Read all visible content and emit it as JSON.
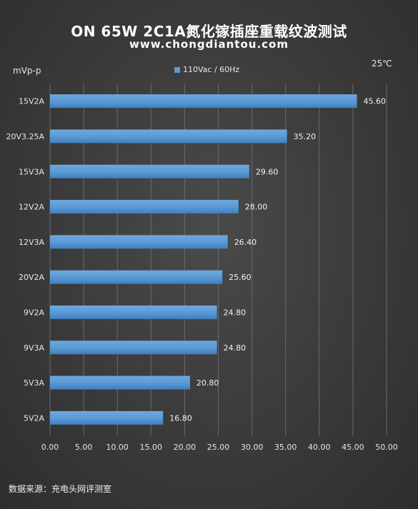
{
  "header": {
    "title": "ON 65W 2C1A氮化镓插座重载纹波测试",
    "subtitle": "www.chongdiantou.com",
    "unit": "mVp-p",
    "temperature": "25℃"
  },
  "footer": {
    "source": "数据来源：充电头网评测室"
  },
  "colors": {
    "bar": "#5b9bd5",
    "grid": "#6a6a6a",
    "background": "#3a3a3a"
  },
  "chart_data": {
    "type": "bar",
    "orientation": "horizontal",
    "categories": [
      "15V2A",
      "20V3.25A",
      "15V3A",
      "12V2A",
      "12V3A",
      "20V2A",
      "9V2A",
      "9V3A",
      "5V3A",
      "5V2A"
    ],
    "series": [
      {
        "name": "110Vac / 60Hz",
        "values": [
          45.6,
          35.2,
          29.6,
          28.0,
          26.4,
          25.6,
          24.8,
          24.8,
          20.8,
          16.8
        ],
        "labels": [
          "45.60",
          "35.20",
          "29.60",
          "28.00",
          "26.40",
          "25.60",
          "24.80",
          "24.80",
          "20.80",
          "16.80"
        ]
      }
    ],
    "xlim": [
      0,
      50
    ],
    "x_ticks": [
      "0.00",
      "5.00",
      "10.00",
      "15.00",
      "20.00",
      "25.00",
      "30.00",
      "35.00",
      "40.00",
      "45.00",
      "50.00"
    ],
    "grid": "vertical",
    "legend_position": "top-center"
  }
}
